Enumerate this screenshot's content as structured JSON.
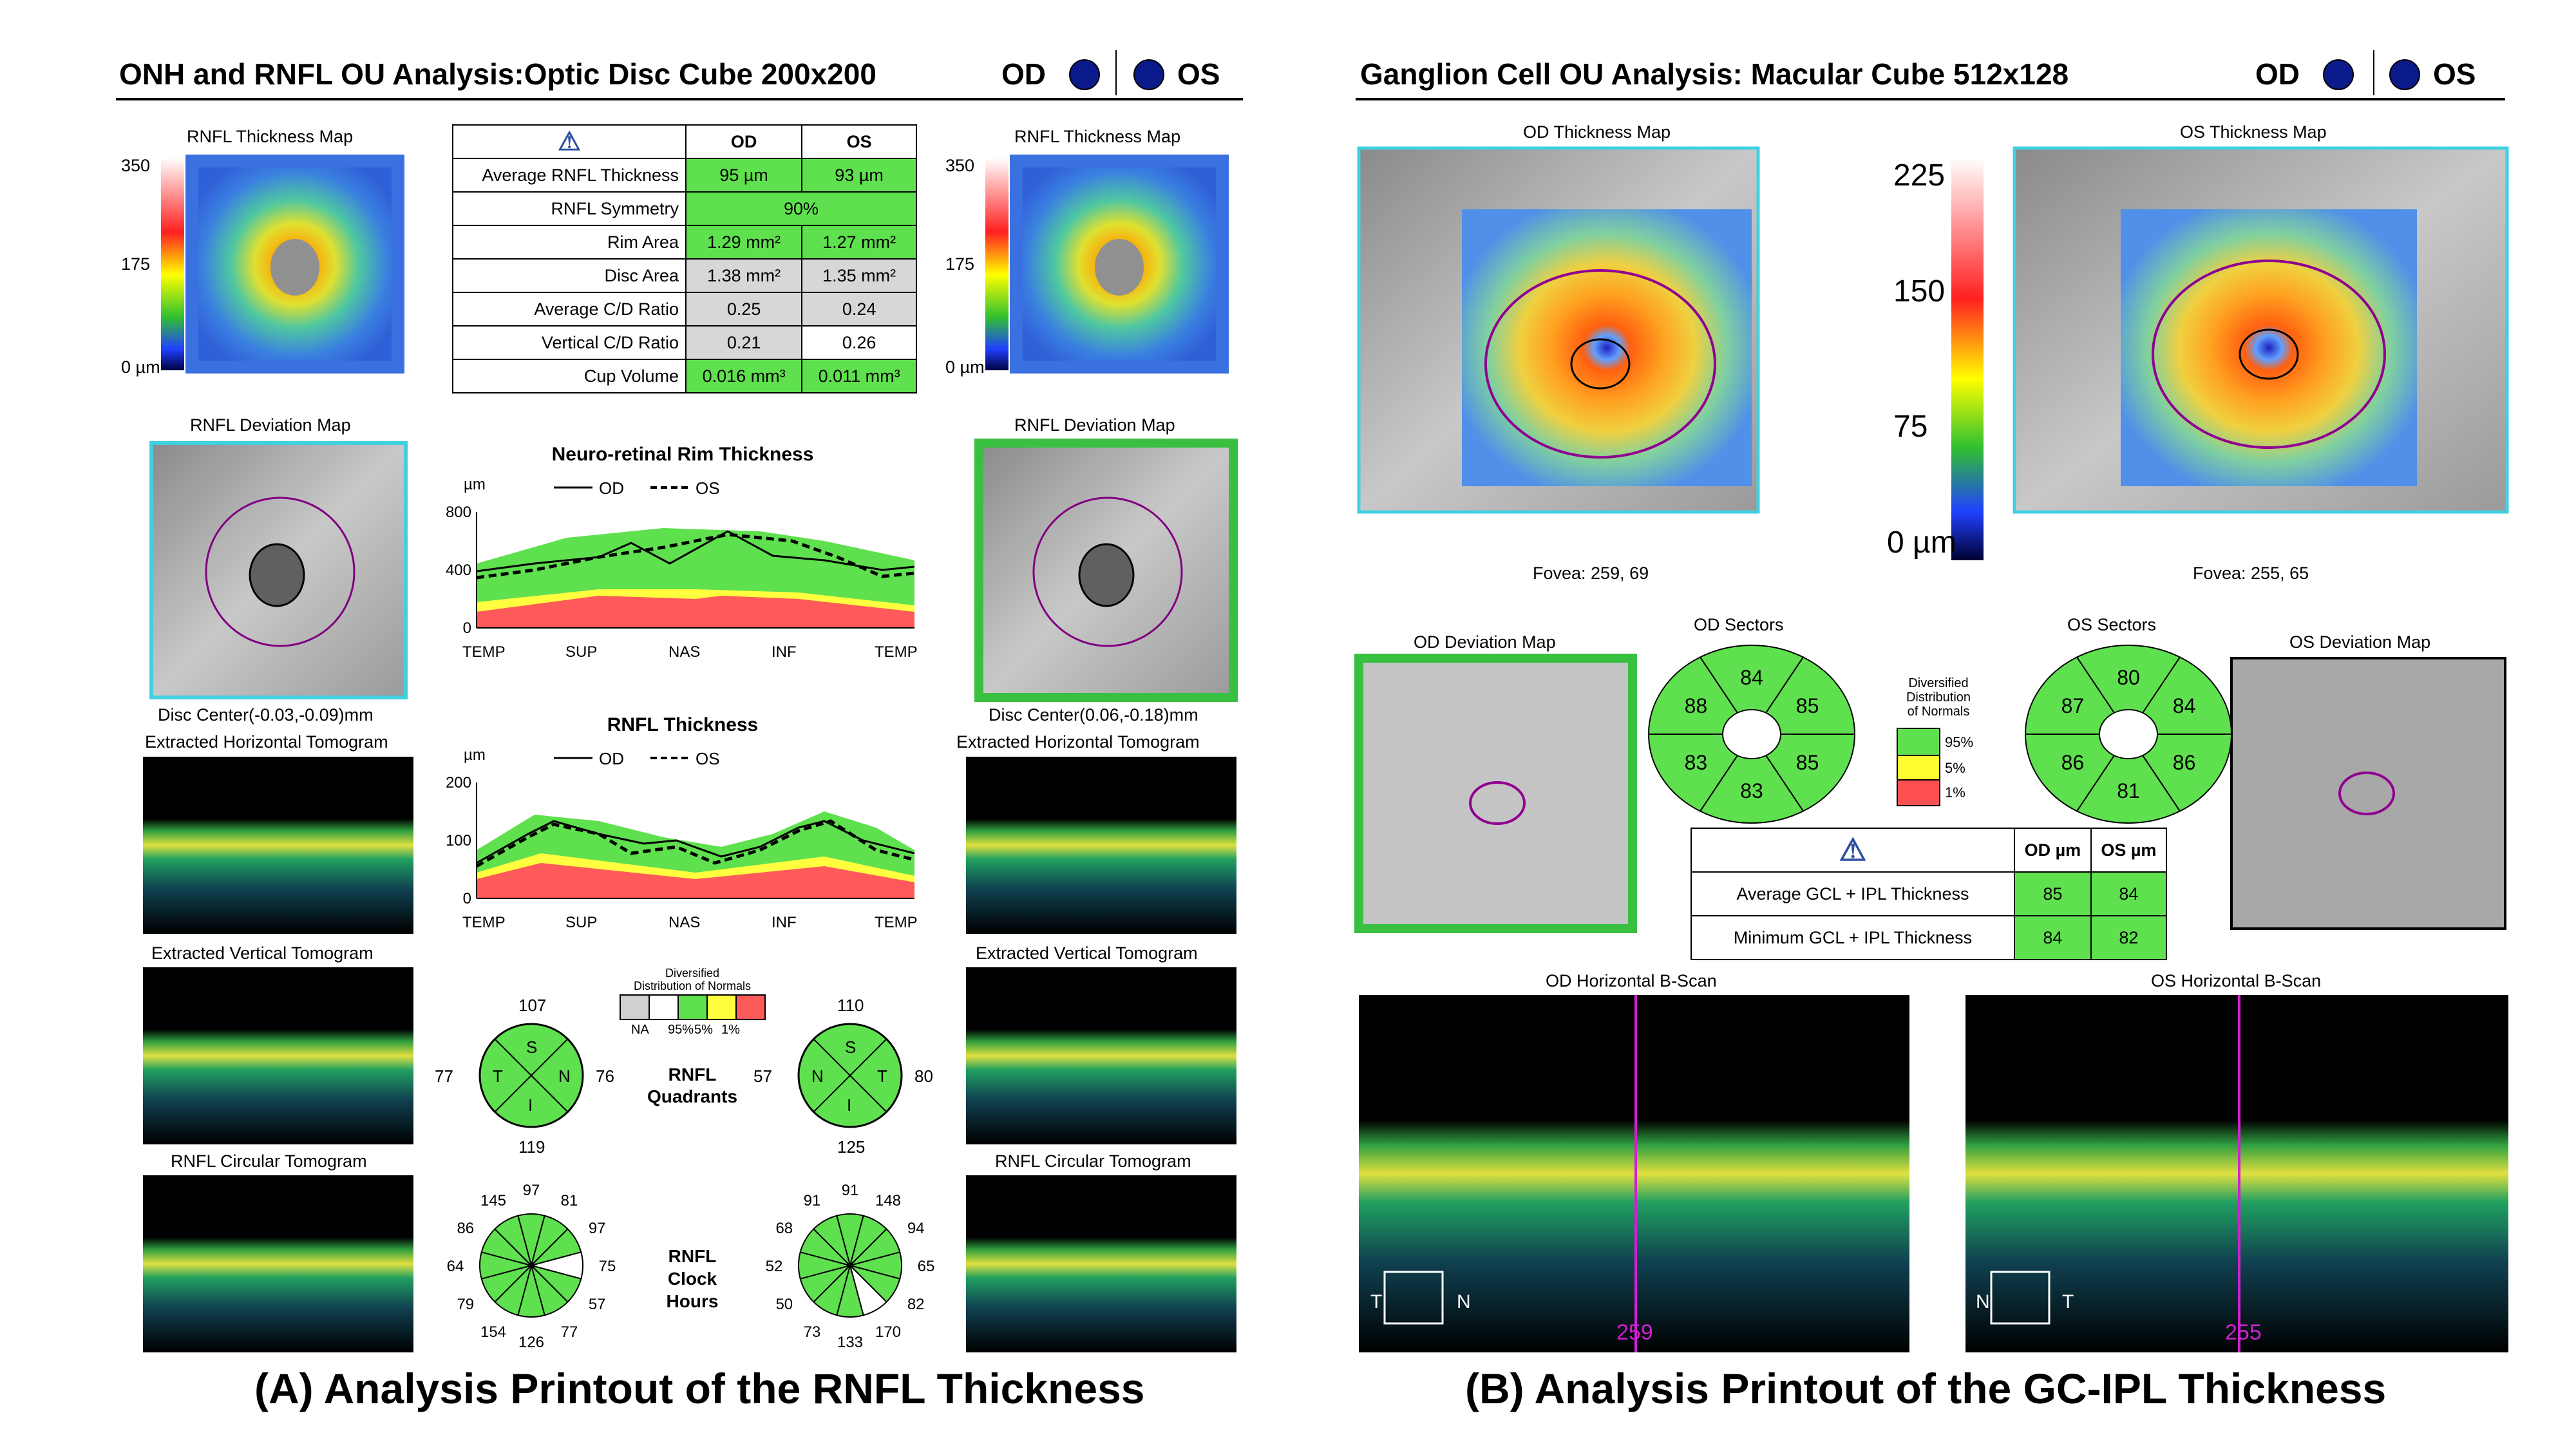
{
  "left": {
    "title": "ONH and RNFL OU Analysis:Optic Disc Cube 200x200",
    "od": "OD",
    "os": "OS",
    "thickness_map_label": "RNFL Thickness Map",
    "scale": [
      "350",
      "175",
      "0 µm"
    ],
    "table": {
      "cols": [
        "OD",
        "OS"
      ],
      "rows": [
        {
          "label": "Average RNFL Thickness",
          "od": "95 µm",
          "os": "93 µm"
        },
        {
          "label": "RNFL Symmetry",
          "both": "90%"
        },
        {
          "label": "Rim Area",
          "od": "1.29 mm²",
          "os": "1.27 mm²"
        },
        {
          "label": "Disc Area",
          "od": "1.38 mm²",
          "os": "1.35 mm²"
        },
        {
          "label": "Average C/D Ratio",
          "od": "0.25",
          "os": "0.24"
        },
        {
          "label": "Vertical C/D Ratio",
          "od": "0.21",
          "os": "0.26"
        },
        {
          "label": "Cup Volume",
          "od": "0.016 mm³",
          "os": "0.011 mm³"
        }
      ]
    },
    "deviation_map_label": "RNFL Deviation Map",
    "disc_center_od": "Disc Center(-0.03,-0.09)mm",
    "disc_center_os": "Disc Center(0.06,-0.18)mm",
    "horiz_tomo": "Extracted Horizontal Tomogram",
    "vert_tomo": "Extracted Vertical Tomogram",
    "circ_tomo": "RNFL Circular Tomogram",
    "rim_chart": {
      "title": "Neuro-retinal Rim Thickness",
      "unit": "µm",
      "legend_od": "OD",
      "legend_os": "OS",
      "yticks": [
        "800",
        "400",
        "0"
      ],
      "xticks": [
        "TEMP",
        "SUP",
        "NAS",
        "INF",
        "TEMP"
      ]
    },
    "rnfl_chart": {
      "title": "RNFL Thickness",
      "unit": "µm",
      "legend_od": "OD",
      "legend_os": "OS",
      "yticks": [
        "200",
        "100",
        "0"
      ],
      "xticks": [
        "TEMP",
        "SUP",
        "NAS",
        "INF",
        "TEMP"
      ]
    },
    "normals": {
      "title1": "Diversified",
      "title2": "Distribution of Normals",
      "labels": [
        "NA",
        "95%",
        "5%",
        "1%"
      ]
    },
    "quadrants": {
      "label1": "RNFL",
      "label2": "Quadrants",
      "od": {
        "top": "107",
        "bottom": "119",
        "left": "77",
        "right": "76",
        "letters": [
          "S",
          "T",
          "N",
          "I"
        ]
      },
      "os": {
        "top": "110",
        "bottom": "125",
        "left": "57",
        "right": "80",
        "letters": [
          "S",
          "N",
          "T",
          "I"
        ]
      }
    },
    "clock": {
      "label1": "RNFL",
      "label2": "Clock",
      "label3": "Hours",
      "od": [
        "97",
        "81",
        "97",
        "75",
        "57",
        "77",
        "126",
        "154",
        "79",
        "64",
        "86",
        "145"
      ],
      "os": [
        "91",
        "148",
        "94",
        "65",
        "82",
        "170",
        "133",
        "73",
        "50",
        "52",
        "68",
        "91"
      ]
    },
    "caption": "(A) Analysis Printout of the RNFL Thickness"
  },
  "right": {
    "title": "Ganglion Cell OU Analysis: Macular Cube 512x128",
    "od": "OD",
    "os": "OS",
    "od_map": "OD Thickness Map",
    "os_map": "OS Thickness Map",
    "scale": [
      "225",
      "150",
      "75",
      "0 µm"
    ],
    "fovea_od": "Fovea: 259, 69",
    "fovea_os": "Fovea: 255, 65",
    "od_dev": "OD Deviation Map",
    "os_dev": "OS Deviation Map",
    "od_sectors": {
      "title": "OD Sectors",
      "values": [
        "84",
        "85",
        "85",
        "83",
        "83",
        "88"
      ]
    },
    "os_sectors": {
      "title": "OS Sectors",
      "values": [
        "80",
        "84",
        "86",
        "81",
        "86",
        "87"
      ]
    },
    "normals": {
      "l1": "Diversified",
      "l2": "Distribution",
      "l3": "of Normals",
      "labels": [
        "95%",
        "5%",
        "1%"
      ]
    },
    "table": {
      "cols": [
        "OD µm",
        "OS µm"
      ],
      "rows": [
        {
          "label": "Average GCL + IPL Thickness",
          "od": "85",
          "os": "84"
        },
        {
          "label": "Minimum GCL + IPL Thickness",
          "od": "84",
          "os": "82"
        }
      ]
    },
    "od_bscan": "OD Horizontal B-Scan",
    "os_bscan": "OS Horizontal B-Scan",
    "od_dir": [
      "T",
      "N"
    ],
    "os_dir": [
      "N",
      "T"
    ],
    "od_pos": "259",
    "os_pos": "255",
    "caption": "(B) Analysis Printout of the GC-IPL Thickness"
  }
}
